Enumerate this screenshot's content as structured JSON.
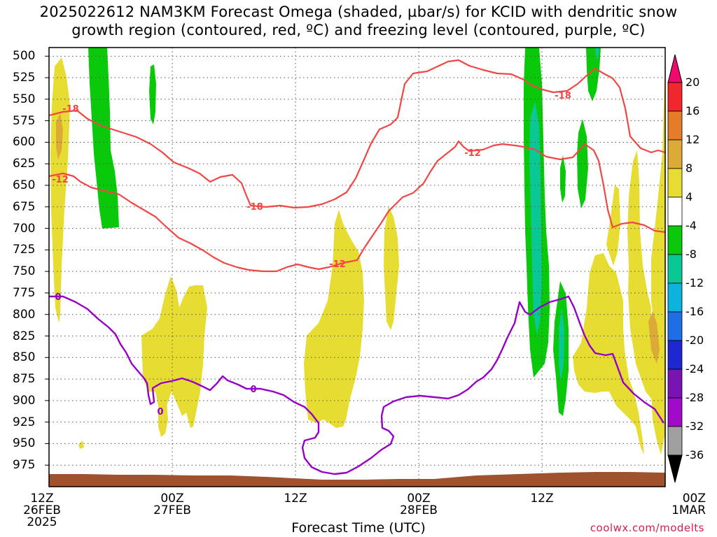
{
  "title_line1": "2025022612 NAM3KM Forecast Omega (shaded, µbar/s) for KCID with dendritic snow",
  "title_line2": "growth region (contoured, red, ºC) and freezing level (contoured, purple, ºC)",
  "xtitle": "Forecast Time (UTC)",
  "credit": "coolwx.com/modelts",
  "chart_data": {
    "type": "heatmap",
    "y_axis": {
      "ticks": [
        "500",
        "525",
        "550",
        "575",
        "600",
        "625",
        "650",
        "675",
        "700",
        "725",
        "750",
        "775",
        "800",
        "825",
        "850",
        "875",
        "900",
        "925",
        "950",
        "975"
      ],
      "range_hPa": [
        490,
        1000
      ],
      "inverted": true
    },
    "x_axis": {
      "ticks": [
        {
          "label": "12Z",
          "date": "26FEB",
          "year": "2025"
        },
        {
          "label": "00Z",
          "date": "27FEB",
          "year": ""
        },
        {
          "label": "12Z",
          "date": "",
          "year": ""
        },
        {
          "label": "00Z",
          "date": "28FEB",
          "year": ""
        },
        {
          "label": "12Z",
          "date": "",
          "year": ""
        },
        {
          "label": "00Z",
          "date": "1MAR",
          "year": ""
        }
      ]
    },
    "grid": true,
    "colorbar": {
      "labels": [
        "20",
        "16",
        "12",
        "8",
        "4",
        "-4",
        "-8",
        "-12",
        "-16",
        "-20",
        "-24",
        "-28",
        "-32",
        "-36"
      ],
      "colors": [
        "#f00a6e",
        "#f0282d",
        "#e67c28",
        "#dcaa37",
        "#e6dc32",
        "#ffffff",
        "#0ac80a",
        "#0ac896",
        "#0ab4dc",
        "#1e6ee6",
        "#1e28d2",
        "#7814b4",
        "#a00ac8",
        "#a0a0a0",
        "#000000"
      ]
    },
    "contour_labels": {
      "dgz_red": [
        "-18",
        "-12",
        "-18",
        "-12",
        "-12",
        "-18"
      ],
      "freezing_purple": [
        "0",
        "0",
        "0"
      ]
    },
    "colors": {
      "dgz_contour": "#f04646",
      "freezing_contour": "#9600c8",
      "terrain": "#a0522d",
      "yellow": "#e6dc32",
      "green": "#0ac80a",
      "teal": "#0ac896",
      "orange": "#dcaa37",
      "grid": "#555555"
    }
  }
}
